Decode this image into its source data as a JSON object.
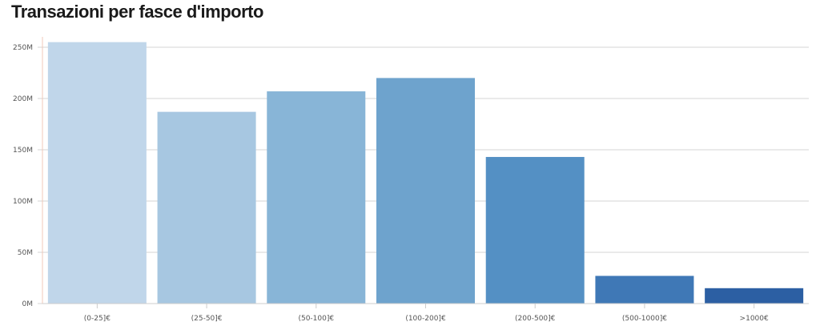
{
  "chart_data": {
    "type": "bar",
    "title": "Transazioni per fasce d'importo",
    "categories": [
      "(0-25]€",
      "(25-50]€",
      "(50-100]€",
      "(100-200]€",
      "(200-500]€",
      "(500-1000]€",
      ">1000€"
    ],
    "values": [
      255,
      187,
      207,
      220,
      143,
      27,
      15
    ],
    "value_unit": "M",
    "ylim": [
      0,
      260
    ],
    "yticks": [
      0,
      50,
      100,
      150,
      200,
      250
    ],
    "ytick_labels": [
      "0M",
      "50M",
      "100M",
      "150M",
      "200M",
      "250M"
    ],
    "grid": true,
    "colors": [
      "#c0d6ea",
      "#a7c7e1",
      "#88b5d7",
      "#6ea3cd",
      "#5490c4",
      "#3f78b6",
      "#2c5fa3"
    ]
  }
}
